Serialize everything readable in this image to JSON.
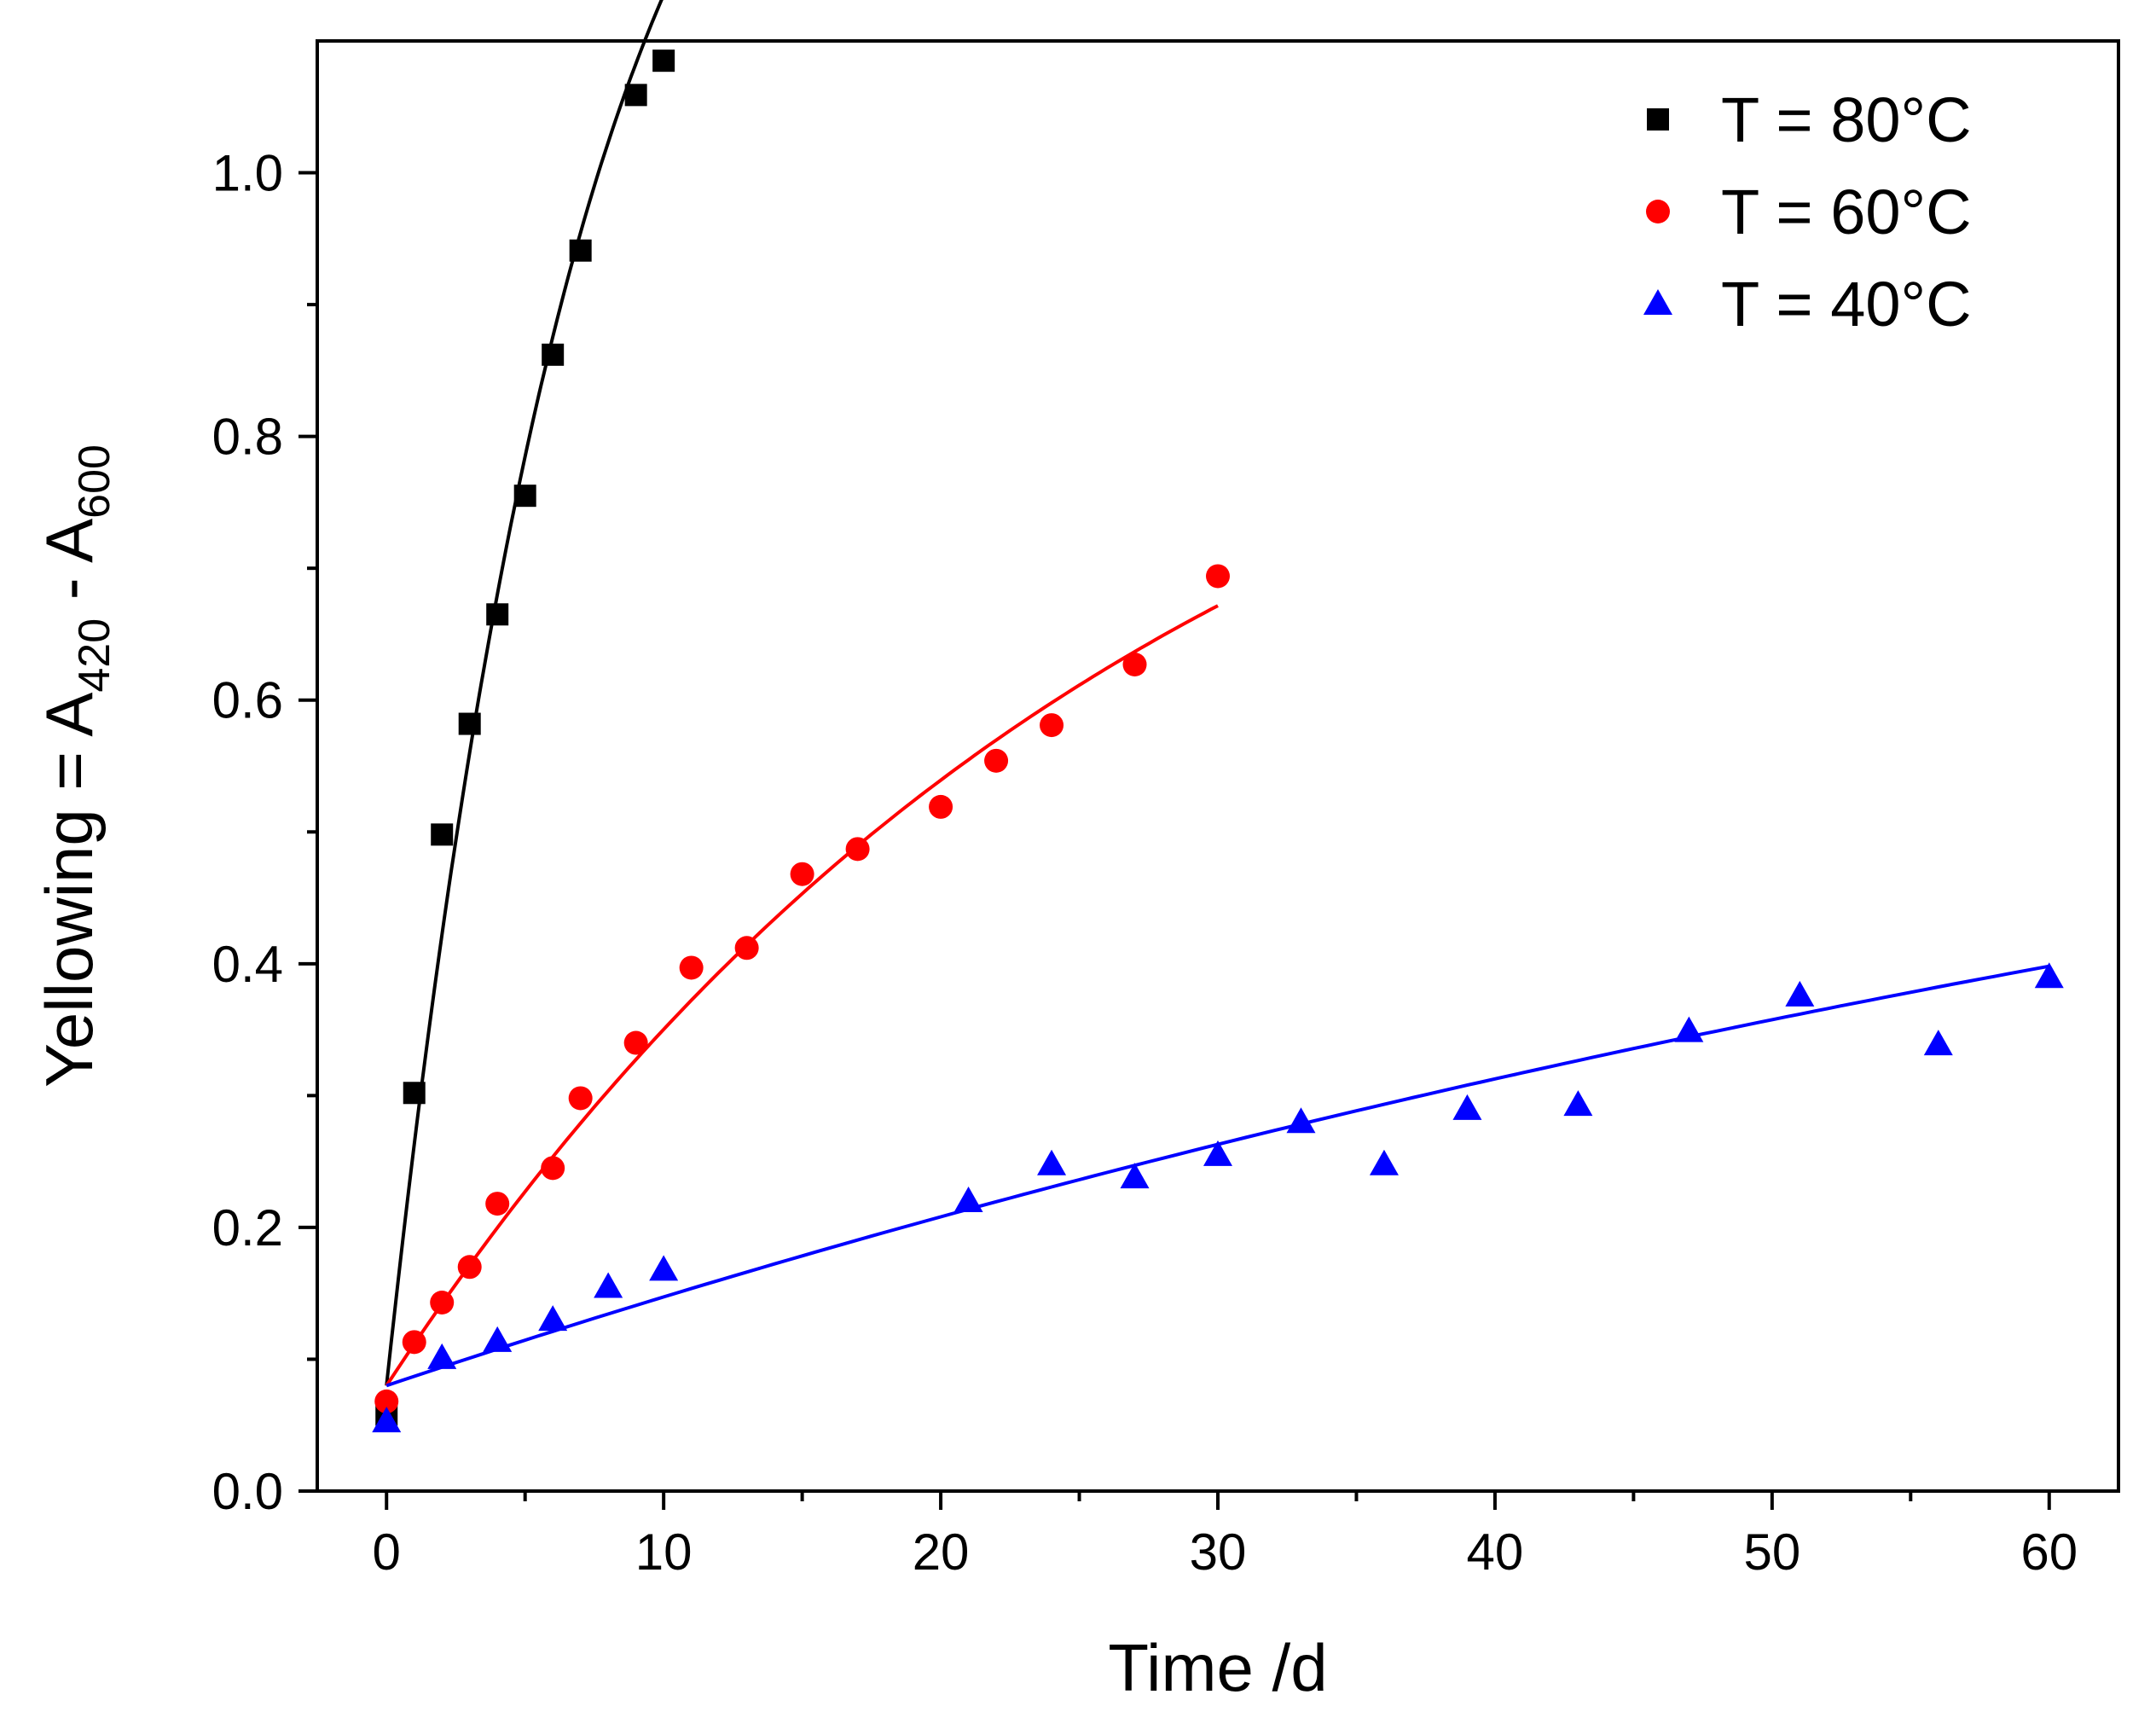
{
  "chart_data": {
    "type": "scatter",
    "title": "",
    "xlabel": "Time /d",
    "ylabel": {
      "base": "Yellowing = A",
      "sub1": "420",
      "mid": " - A",
      "sub2": "600"
    },
    "xlim": [
      -2.5,
      62.5
    ],
    "ylim": [
      0.0,
      1.1
    ],
    "x_ticks": [
      0,
      10,
      20,
      30,
      40,
      50,
      60
    ],
    "x_tick_labels": [
      "0",
      "10",
      "20",
      "30",
      "40",
      "50",
      "60"
    ],
    "y_ticks": [
      0.0,
      0.2,
      0.4,
      0.6,
      0.8,
      1.0
    ],
    "y_tick_labels": [
      "0.0",
      "0.2",
      "0.4",
      "0.6",
      "0.8",
      "1.0"
    ],
    "x_minor_ticks": [
      5,
      15,
      25,
      35,
      45,
      55
    ],
    "y_minor_ticks": [
      0.1,
      0.3,
      0.5,
      0.7,
      0.9
    ],
    "grid": false,
    "legend_position": "top-right",
    "series": [
      {
        "name": "T = 80°C",
        "marker": "square",
        "color": "#000000",
        "x": [
          0,
          1,
          2,
          3,
          4,
          5,
          6,
          7,
          9,
          10
        ],
        "y": [
          0.058,
          0.302,
          0.498,
          0.582,
          0.665,
          0.755,
          0.862,
          0.941,
          1.059,
          1.085
        ],
        "fit": {
          "x0": 0,
          "x1": 10,
          "A": 0.08,
          "B": 1.4,
          "k": 0.14
        }
      },
      {
        "name": "T = 60°C",
        "marker": "circle",
        "color": "#ff0000",
        "x": [
          0,
          1,
          2,
          3,
          4,
          6,
          7,
          9,
          11,
          13,
          15,
          17,
          20,
          22,
          24,
          27,
          30
        ],
        "y": [
          0.068,
          0.113,
          0.143,
          0.17,
          0.218,
          0.245,
          0.298,
          0.34,
          0.397,
          0.412,
          0.468,
          0.487,
          0.519,
          0.554,
          0.581,
          0.627,
          0.694
        ],
        "fit": {
          "x0": 0,
          "x1": 30,
          "A": 0.08,
          "B": 0.9,
          "k": 0.0357
        }
      },
      {
        "name": "T = 40°C",
        "marker": "triangle",
        "color": "#0000ff",
        "x": [
          0,
          2,
          4,
          6,
          8,
          10,
          21,
          24,
          27,
          30,
          33,
          36,
          39,
          43,
          47,
          51,
          56,
          60
        ],
        "y": [
          0.053,
          0.101,
          0.114,
          0.13,
          0.155,
          0.168,
          0.22,
          0.248,
          0.238,
          0.255,
          0.28,
          0.248,
          0.29,
          0.293,
          0.349,
          0.376,
          0.339,
          0.39
        ],
        "fit": {
          "x0": 0,
          "x1": 60,
          "A": 0.08,
          "B": 0.7,
          "k": 0.0101
        }
      }
    ]
  }
}
